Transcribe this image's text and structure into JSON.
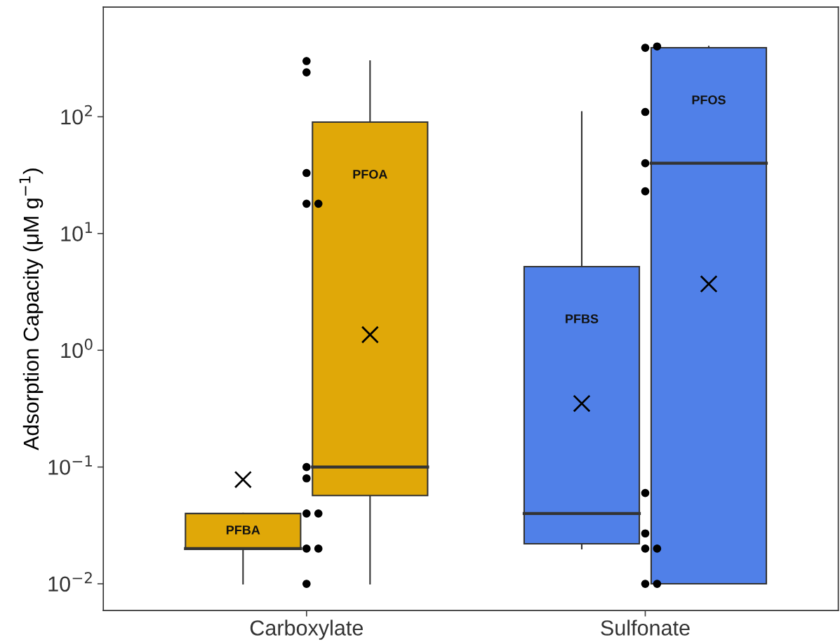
{
  "chart_data": {
    "type": "box",
    "ylabel": "Adsorption Capacity (μM g$^{−1}$)",
    "log": "y",
    "ylim": [
      0.0059,
      870
    ],
    "yticks": [
      {
        "value": 0.01,
        "label": "10$^{−2}$"
      },
      {
        "value": 0.1,
        "label": "10$^{−1}$"
      },
      {
        "value": 1,
        "label": "10$^{0}$"
      },
      {
        "value": 10,
        "label": "10$^{1}$"
      },
      {
        "value": 100,
        "label": "10$^{2}$"
      }
    ],
    "categories": [
      "Carboxylate",
      "Sulfonate"
    ],
    "grid": false,
    "series": [
      {
        "colors": [
          "#e0a808",
          "#5080e8"
        ],
        "boxes": [
          {
            "low": 0.01,
            "q1": 0.02,
            "median": 0.02,
            "q3": 0.04,
            "high": 0.04,
            "mean": 0.078
          },
          {
            "low": 0.02,
            "q1": 0.022,
            "median": 0.04,
            "q3": 5.2,
            "high": 110,
            "mean": 0.35
          }
        ]
      },
      {
        "colors": [
          "#e0a808",
          "#5080e8"
        ],
        "boxes": [
          {
            "low": 0.01,
            "q1": 0.057,
            "median": 0.1,
            "q3": 90,
            "high": 300,
            "mean": 1.36
          },
          {
            "low": 0.01,
            "q1": 0.01,
            "median": 40,
            "q3": 390,
            "high": 400,
            "mean": 3.7
          }
        ]
      },
      {
        "type": "scatter",
        "color": "#000000",
        "marker": "circle",
        "x": [
          "Carboxylate",
          "Carboxylate",
          "Carboxylate",
          "Carboxylate",
          "Carboxylate",
          "Carboxylate",
          "Carboxylate",
          "Carboxylate",
          "Carboxylate",
          "Carboxylate",
          "Carboxylate",
          "Carboxylate",
          "Sulfonate",
          "Sulfonate",
          "Sulfonate",
          "Sulfonate",
          "Sulfonate",
          "Sulfonate",
          "Sulfonate",
          "Sulfonate",
          "Sulfonate",
          "Sulfonate",
          "Sulfonate"
        ],
        "values": [
          300,
          240,
          18,
          18,
          33,
          0.08,
          0.1,
          0.02,
          0.02,
          0.01,
          0.04,
          0.04,
          390,
          400,
          110,
          40,
          23,
          0.06,
          0.027,
          0.02,
          0.02,
          0.01,
          0.01
        ]
      }
    ],
    "annotations": [
      "PFBA",
      "PFOA",
      "PFBS",
      "PFOS"
    ]
  }
}
